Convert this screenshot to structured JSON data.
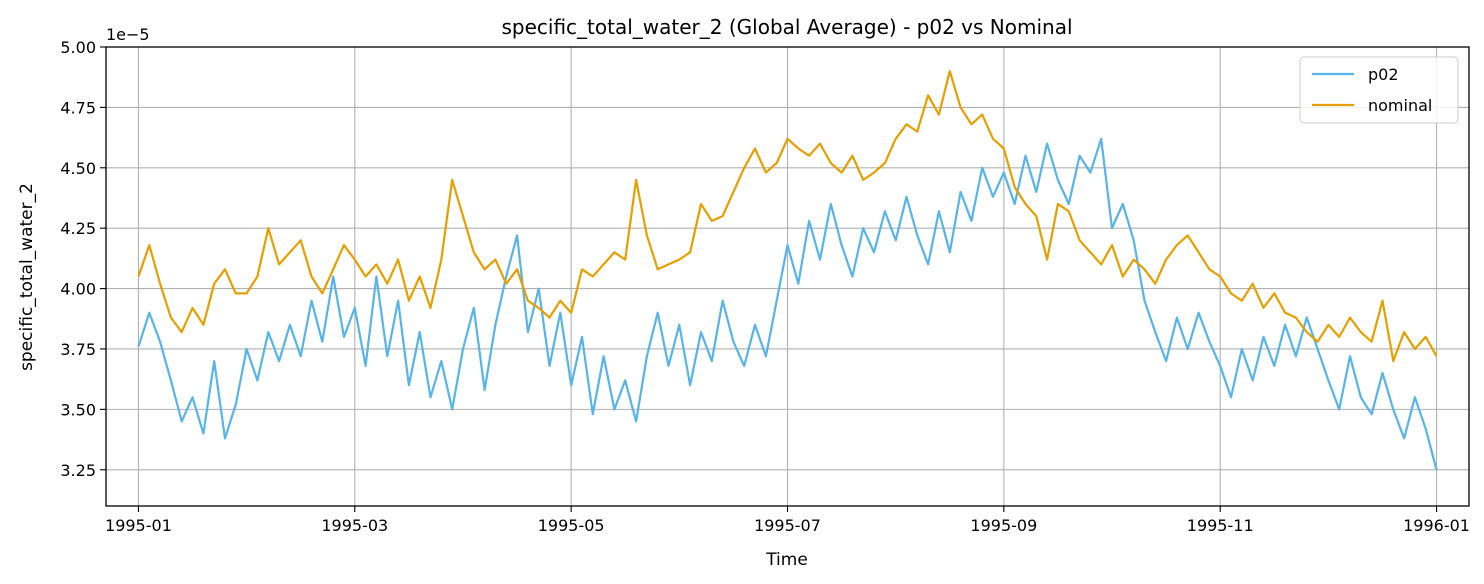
{
  "chart_data": {
    "type": "line",
    "title": "specific_total_water_2 (Global Average) - p02 vs Nominal",
    "xlabel": "Time",
    "ylabel": "specific_total_water_2",
    "y_offset_label": "1e−5",
    "y_scale": 1e-05,
    "xlim": [
      -0.3,
      12.3
    ],
    "ylim": [
      3.1,
      5.0
    ],
    "grid": true,
    "legend_position": "top-right",
    "x_ticks": [
      {
        "value": 0,
        "label": "1995-01"
      },
      {
        "value": 2,
        "label": "1995-03"
      },
      {
        "value": 4,
        "label": "1995-05"
      },
      {
        "value": 6,
        "label": "1995-07"
      },
      {
        "value": 8,
        "label": "1995-09"
      },
      {
        "value": 10,
        "label": "1995-11"
      },
      {
        "value": 12,
        "label": "1996-01"
      }
    ],
    "y_ticks": [
      {
        "value": 3.25,
        "label": "3.25"
      },
      {
        "value": 3.5,
        "label": "3.50"
      },
      {
        "value": 3.75,
        "label": "3.75"
      },
      {
        "value": 4.0,
        "label": "4.00"
      },
      {
        "value": 4.25,
        "label": "4.25"
      },
      {
        "value": 4.5,
        "label": "4.50"
      },
      {
        "value": 4.75,
        "label": "4.75"
      },
      {
        "value": 5.0,
        "label": "5.00"
      }
    ],
    "x_unit": "months since 1995-01-01",
    "series": [
      {
        "name": "p02",
        "color": "#56B4E9",
        "x": [
          0.0,
          0.1,
          0.2,
          0.3,
          0.4,
          0.5,
          0.6,
          0.7,
          0.8,
          0.9,
          1.0,
          1.1,
          1.2,
          1.3,
          1.4,
          1.5,
          1.6,
          1.7,
          1.8,
          1.9,
          2.0,
          2.1,
          2.2,
          2.3,
          2.4,
          2.5,
          2.6,
          2.7,
          2.8,
          2.9,
          3.0,
          3.1,
          3.2,
          3.3,
          3.4,
          3.5,
          3.6,
          3.7,
          3.8,
          3.9,
          4.0,
          4.1,
          4.2,
          4.3,
          4.4,
          4.5,
          4.6,
          4.7,
          4.8,
          4.9,
          5.0,
          5.1,
          5.2,
          5.3,
          5.4,
          5.5,
          5.6,
          5.7,
          5.8,
          5.9,
          6.0,
          6.1,
          6.2,
          6.3,
          6.4,
          6.5,
          6.6,
          6.7,
          6.8,
          6.9,
          7.0,
          7.1,
          7.2,
          7.3,
          7.4,
          7.5,
          7.6,
          7.7,
          7.8,
          7.9,
          8.0,
          8.1,
          8.2,
          8.3,
          8.4,
          8.5,
          8.6,
          8.7,
          8.8,
          8.9,
          9.0,
          9.1,
          9.2,
          9.3,
          9.4,
          9.5,
          9.6,
          9.7,
          9.8,
          9.9,
          10.0,
          10.1,
          10.2,
          10.3,
          10.4,
          10.5,
          10.6,
          10.7,
          10.8,
          10.9,
          11.0,
          11.1,
          11.2,
          11.3,
          11.4,
          11.5,
          11.6,
          11.7,
          11.8,
          11.9,
          12.0
        ],
        "values": [
          3.76,
          3.9,
          3.78,
          3.62,
          3.45,
          3.55,
          3.4,
          3.7,
          3.38,
          3.52,
          3.75,
          3.62,
          3.82,
          3.7,
          3.85,
          3.72,
          3.95,
          3.78,
          4.05,
          3.8,
          3.92,
          3.68,
          4.05,
          3.72,
          3.95,
          3.6,
          3.82,
          3.55,
          3.7,
          3.5,
          3.75,
          3.92,
          3.58,
          3.85,
          4.05,
          4.22,
          3.82,
          4.0,
          3.68,
          3.9,
          3.6,
          3.8,
          3.48,
          3.72,
          3.5,
          3.62,
          3.45,
          3.72,
          3.9,
          3.68,
          3.85,
          3.6,
          3.82,
          3.7,
          3.95,
          3.78,
          3.68,
          3.85,
          3.72,
          3.95,
          4.18,
          4.02,
          4.28,
          4.12,
          4.35,
          4.18,
          4.05,
          4.25,
          4.15,
          4.32,
          4.2,
          4.38,
          4.22,
          4.1,
          4.32,
          4.15,
          4.4,
          4.28,
          4.5,
          4.38,
          4.48,
          4.35,
          4.55,
          4.4,
          4.6,
          4.45,
          4.35,
          4.55,
          4.48,
          4.62,
          4.25,
          4.35,
          4.2,
          3.95,
          3.82,
          3.7,
          3.88,
          3.75,
          3.9,
          3.78,
          3.68,
          3.55,
          3.75,
          3.62,
          3.8,
          3.68,
          3.85,
          3.72,
          3.88,
          3.75,
          3.62,
          3.5,
          3.72,
          3.55,
          3.48,
          3.65,
          3.5,
          3.38,
          3.55,
          3.42,
          3.25
        ]
      },
      {
        "name": "nominal",
        "color": "#E69F00",
        "x": [
          0.0,
          0.1,
          0.2,
          0.3,
          0.4,
          0.5,
          0.6,
          0.7,
          0.8,
          0.9,
          1.0,
          1.1,
          1.2,
          1.3,
          1.4,
          1.5,
          1.6,
          1.7,
          1.8,
          1.9,
          2.0,
          2.1,
          2.2,
          2.3,
          2.4,
          2.5,
          2.6,
          2.7,
          2.8,
          2.9,
          3.0,
          3.1,
          3.2,
          3.3,
          3.4,
          3.5,
          3.6,
          3.7,
          3.8,
          3.9,
          4.0,
          4.1,
          4.2,
          4.3,
          4.4,
          4.5,
          4.6,
          4.7,
          4.8,
          4.9,
          5.0,
          5.1,
          5.2,
          5.3,
          5.4,
          5.5,
          5.6,
          5.7,
          5.8,
          5.9,
          6.0,
          6.1,
          6.2,
          6.3,
          6.4,
          6.5,
          6.6,
          6.7,
          6.8,
          6.9,
          7.0,
          7.1,
          7.2,
          7.3,
          7.4,
          7.5,
          7.6,
          7.7,
          7.8,
          7.9,
          8.0,
          8.1,
          8.2,
          8.3,
          8.4,
          8.5,
          8.6,
          8.7,
          8.8,
          8.9,
          9.0,
          9.1,
          9.2,
          9.3,
          9.4,
          9.5,
          9.6,
          9.7,
          9.8,
          9.9,
          10.0,
          10.1,
          10.2,
          10.3,
          10.4,
          10.5,
          10.6,
          10.7,
          10.8,
          10.9,
          11.0,
          11.1,
          11.2,
          11.3,
          11.4,
          11.5,
          11.6,
          11.7,
          11.8,
          11.9,
          12.0
        ],
        "values": [
          4.05,
          4.18,
          4.02,
          3.88,
          3.82,
          3.92,
          3.85,
          4.02,
          4.08,
          3.98,
          3.98,
          4.05,
          4.25,
          4.1,
          4.15,
          4.2,
          4.05,
          3.98,
          4.08,
          4.18,
          4.12,
          4.05,
          4.1,
          4.02,
          4.12,
          3.95,
          4.05,
          3.92,
          4.12,
          4.45,
          4.3,
          4.15,
          4.08,
          4.12,
          4.02,
          4.08,
          3.95,
          3.92,
          3.88,
          3.95,
          3.9,
          4.08,
          4.05,
          4.1,
          4.15,
          4.12,
          4.45,
          4.22,
          4.08,
          4.1,
          4.12,
          4.15,
          4.35,
          4.28,
          4.3,
          4.4,
          4.5,
          4.58,
          4.48,
          4.52,
          4.62,
          4.58,
          4.55,
          4.6,
          4.52,
          4.48,
          4.55,
          4.45,
          4.48,
          4.52,
          4.62,
          4.68,
          4.65,
          4.8,
          4.72,
          4.9,
          4.75,
          4.68,
          4.72,
          4.62,
          4.58,
          4.42,
          4.35,
          4.3,
          4.12,
          4.35,
          4.32,
          4.2,
          4.15,
          4.1,
          4.18,
          4.05,
          4.12,
          4.08,
          4.02,
          4.12,
          4.18,
          4.22,
          4.15,
          4.08,
          4.05,
          3.98,
          3.95,
          4.02,
          3.92,
          3.98,
          3.9,
          3.88,
          3.82,
          3.78,
          3.85,
          3.8,
          3.88,
          3.82,
          3.78,
          3.95,
          3.7,
          3.82,
          3.75,
          3.8,
          3.72
        ]
      }
    ]
  }
}
